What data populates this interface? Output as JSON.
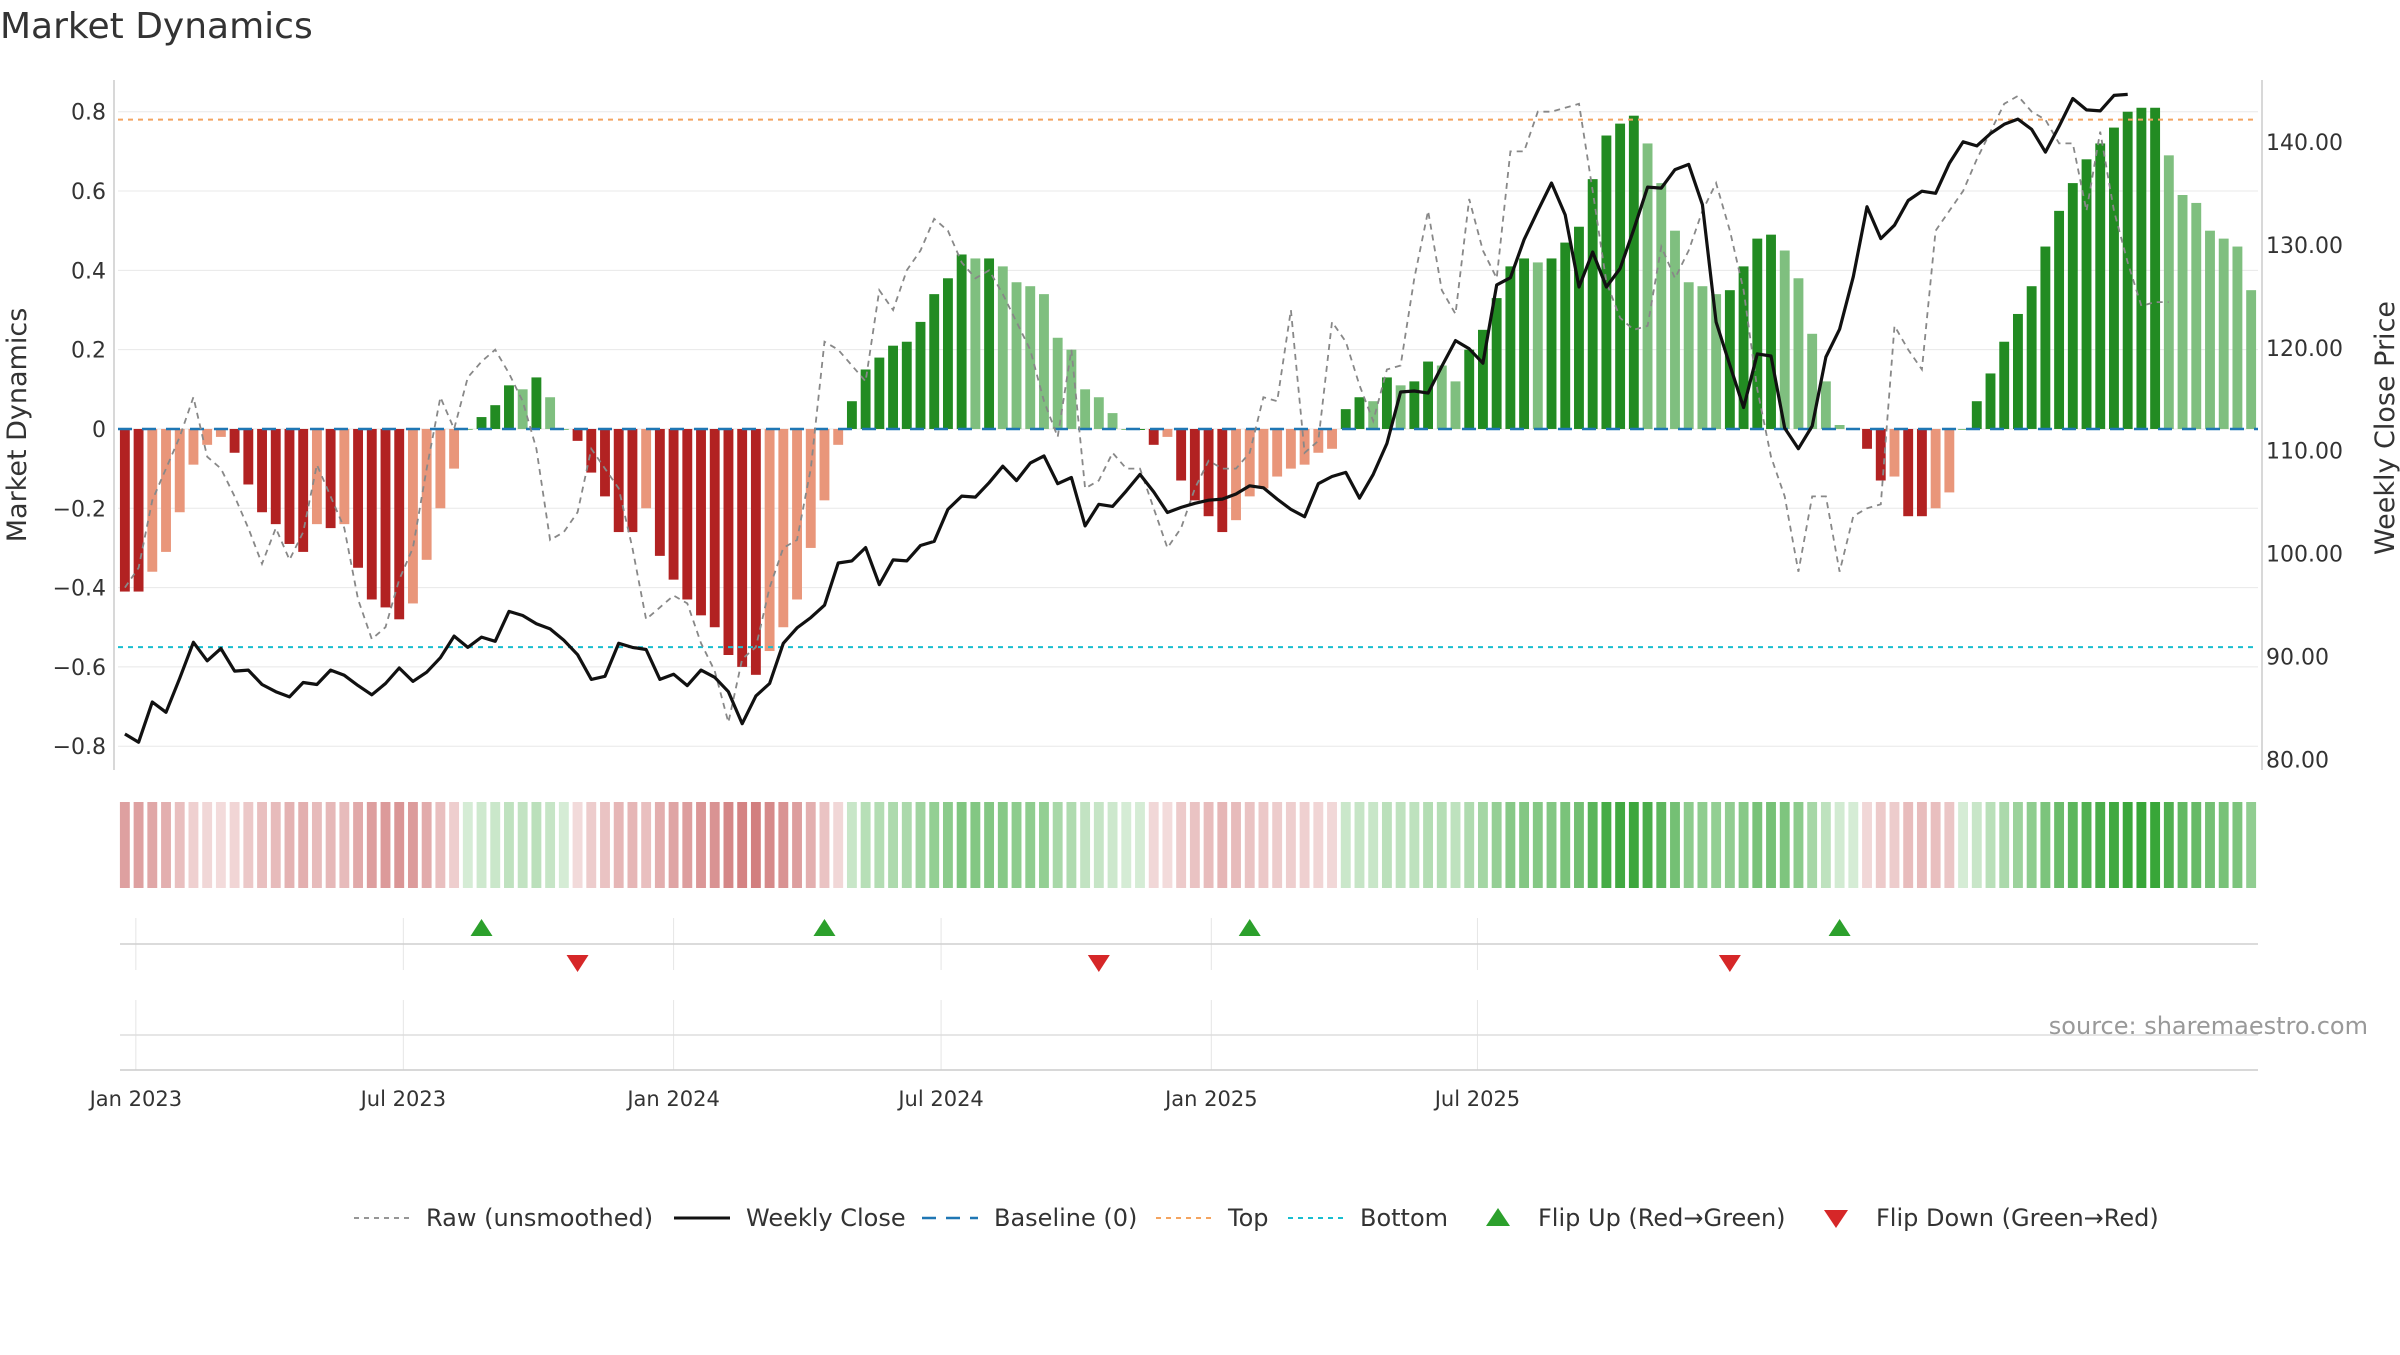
{
  "chart_data": {
    "type": "bar",
    "title": "Market Dynamics",
    "ylabel_left": "Market Dynamics",
    "ylabel_right": "Weekly Close Price",
    "source": "source: sharemaestro.com",
    "x_ticks": [
      "Jan 2023",
      "Jul 2023",
      "Jan 2024",
      "Jul 2024",
      "Jan 2025",
      "Jul 2025"
    ],
    "ylim_left": [
      -0.86,
      0.88
    ],
    "yticks_left": [
      "0.8",
      "0.6",
      "0.4",
      "0.2",
      "0",
      "−0.2",
      "−0.4",
      "−0.6",
      "−0.8"
    ],
    "ytick_values_left": [
      0.8,
      0.6,
      0.4,
      0.2,
      0,
      -0.2,
      -0.4,
      -0.6,
      -0.8
    ],
    "ylim_right": [
      79,
      146
    ],
    "yticks_right": [
      "140.00",
      "130.00",
      "120.00",
      "110.00",
      "100.00",
      "90.00",
      "80.00"
    ],
    "ytick_values_right": [
      140,
      130,
      120,
      110,
      100,
      90,
      80
    ],
    "top_line": 0.78,
    "bottom_line": -0.55,
    "grid": true,
    "legend_position": "bottom-center",
    "legend": [
      "Raw (unsmoothed)",
      "Weekly Close",
      "Baseline (0)",
      "Top",
      "Bottom",
      "Flip Up (Red→Green)",
      "Flip Down (Green→Red)"
    ],
    "colors": {
      "strong_up": "#228B22",
      "weak_up": "#7FBF7F",
      "strong_down": "#B22222",
      "weak_down": "#E9967A",
      "close": "#111111",
      "raw": "#888888",
      "baseline": "#1F77B4",
      "top": "#F4A460",
      "bottom": "#17BECF",
      "flip_up": "#2CA02C",
      "flip_down": "#D62728"
    },
    "series": [
      {
        "name": "Market Dynamics",
        "values": [
          -0.41,
          -0.41,
          -0.36,
          -0.31,
          -0.21,
          -0.09,
          -0.04,
          -0.02,
          -0.06,
          -0.14,
          -0.21,
          -0.24,
          -0.29,
          -0.31,
          -0.24,
          -0.25,
          -0.24,
          -0.35,
          -0.43,
          -0.45,
          -0.48,
          -0.44,
          -0.33,
          -0.2,
          -0.1,
          0,
          0.03,
          0.06,
          0.11,
          0.1,
          0.13,
          0.08,
          0,
          -0.03,
          -0.11,
          -0.17,
          -0.26,
          -0.26,
          -0.2,
          -0.32,
          -0.38,
          -0.43,
          -0.47,
          -0.5,
          -0.57,
          -0.6,
          -0.62,
          -0.56,
          -0.5,
          -0.43,
          -0.3,
          -0.18,
          -0.04,
          0.07,
          0.15,
          0.18,
          0.21,
          0.22,
          0.27,
          0.34,
          0.38,
          0.44,
          0.43,
          0.43,
          0.41,
          0.37,
          0.36,
          0.34,
          0.23,
          0.2,
          0.1,
          0.08,
          0.04,
          0,
          0,
          -0.04,
          -0.02,
          -0.13,
          -0.18,
          -0.22,
          -0.26,
          -0.23,
          -0.17,
          -0.15,
          -0.12,
          -0.1,
          -0.09,
          -0.06,
          -0.05,
          0.05,
          0.08,
          0.07,
          0.13,
          0.11,
          0.12,
          0.17,
          0.16,
          0.12,
          0.2,
          0.25,
          0.33,
          0.41,
          0.43,
          0.42,
          0.43,
          0.47,
          0.51,
          0.63,
          0.74,
          0.77,
          0.79,
          0.72,
          0.62,
          0.5,
          0.37,
          0.36,
          0.34,
          0.35,
          0.41,
          0.48,
          0.49,
          0.45,
          0.38,
          0.24,
          0.12,
          0.01,
          0,
          -0.05,
          -0.13,
          -0.12,
          -0.22,
          -0.22,
          -0.2,
          -0.16,
          0,
          0.07,
          0.14,
          0.22,
          0.29,
          0.36,
          0.46,
          0.55,
          0.62,
          0.68,
          0.72,
          0.76,
          0.8,
          0.81,
          0.81,
          0.69,
          0.59,
          0.57,
          0.5,
          0.48,
          0.46,
          0.35
        ]
      },
      {
        "name": "Weekly Close",
        "values": [
          82.5,
          81.7,
          85.6,
          84.6,
          87.9,
          91.4,
          89.6,
          90.8,
          88.6,
          88.7,
          87.3,
          86.6,
          86.1,
          87.5,
          87.3,
          88.7,
          88.2,
          87.2,
          86.3,
          87.4,
          88.9,
          87.6,
          88.5,
          89.9,
          92,
          90.9,
          91.9,
          91.5,
          94.4,
          94,
          93.2,
          92.7,
          91.6,
          90.2,
          87.8,
          88.1,
          91.3,
          90.9,
          90.7,
          87.8,
          88.3,
          87.2,
          88.7,
          88,
          86.6,
          83.5,
          86.2,
          87.4,
          91.3,
          92.8,
          93.8,
          95,
          99.1,
          99.3,
          100.6,
          97,
          99.4,
          99.3,
          100.8,
          101.2,
          104.3,
          105.6,
          105.5,
          106.9,
          108.5,
          107.1,
          108.8,
          109.5,
          106.8,
          107.4,
          102.7,
          104.8,
          104.6,
          106.1,
          107.7,
          106,
          104,
          104.5,
          104.9,
          105.2,
          105.3,
          105.8,
          106.6,
          106.4,
          105.3,
          104.3,
          103.6,
          106.8,
          107.5,
          107.9,
          105.4,
          107.7,
          110.7,
          115.7,
          115.8,
          115.6,
          118.2,
          120.7,
          119.9,
          118.5,
          126.1,
          126.8,
          130.5,
          133.3,
          136,
          132.9,
          125.9,
          129.3,
          125.9,
          127.7,
          131.5,
          135.6,
          135.5,
          137.3,
          137.8,
          133.9,
          122.5,
          118.3,
          114.2,
          119.4,
          119.2,
          112.2,
          110.2,
          112.4,
          119.1,
          121.8,
          126.9,
          133.7,
          130.6,
          131.9,
          134.3,
          135.2,
          135,
          137.9,
          140,
          139.6,
          140.8,
          141.7,
          142.2,
          141.2,
          139,
          141.5,
          144.2,
          143.1,
          143,
          144.5,
          144.6
        ]
      },
      {
        "name": "Raw (unsmoothed)",
        "values": [
          -0.4,
          -0.35,
          -0.18,
          -0.1,
          -0.02,
          0.08,
          -0.07,
          -0.1,
          -0.17,
          -0.25,
          -0.34,
          -0.25,
          -0.33,
          -0.26,
          -0.09,
          -0.17,
          -0.25,
          -0.43,
          -0.53,
          -0.5,
          -0.38,
          -0.3,
          -0.1,
          0.08,
          0,
          0.13,
          0.17,
          0.2,
          0.14,
          0.07,
          -0.05,
          -0.28,
          -0.26,
          -0.21,
          -0.05,
          -0.1,
          -0.15,
          -0.3,
          -0.48,
          -0.45,
          -0.42,
          -0.44,
          -0.54,
          -0.61,
          -0.74,
          -0.58,
          -0.55,
          -0.4,
          -0.3,
          -0.28,
          -0.1,
          0.22,
          0.2,
          0.16,
          0.12,
          0.35,
          0.3,
          0.4,
          0.45,
          0.53,
          0.5,
          0.42,
          0.38,
          0.4,
          0.34,
          0.27,
          0.2,
          0.07,
          -0.02,
          0.2,
          -0.15,
          -0.13,
          -0.06,
          -0.1,
          -0.1,
          -0.2,
          -0.3,
          -0.25,
          -0.15,
          -0.08,
          -0.1,
          -0.1,
          -0.06,
          0.08,
          0.07,
          0.3,
          -0.06,
          -0.03,
          0.27,
          0.22,
          0.11,
          0.02,
          0.15,
          0.16,
          0.38,
          0.55,
          0.35,
          0.29,
          0.58,
          0.45,
          0.38,
          0.7,
          0.7,
          0.8,
          0.8,
          0.81,
          0.82,
          0.6,
          0.37,
          0.28,
          0.25,
          0.26,
          0.46,
          0.38,
          0.45,
          0.55,
          0.62,
          0.5,
          0.35,
          0.1,
          -0.07,
          -0.17,
          -0.36,
          -0.17,
          -0.17,
          -0.36,
          -0.22,
          -0.2,
          -0.19,
          0.26,
          0.2,
          0.15,
          0.5,
          0.55,
          0.6,
          0.68,
          0.75,
          0.82,
          0.84,
          0.8,
          0.78,
          0.72,
          0.72,
          0.55,
          0.75,
          0.55,
          0.42,
          0.31,
          0.32,
          0.32
        ]
      }
    ],
    "flip_up_weeks": [
      26,
      51,
      82,
      125
    ],
    "flip_down_weeks": [
      33,
      71,
      117
    ]
  }
}
